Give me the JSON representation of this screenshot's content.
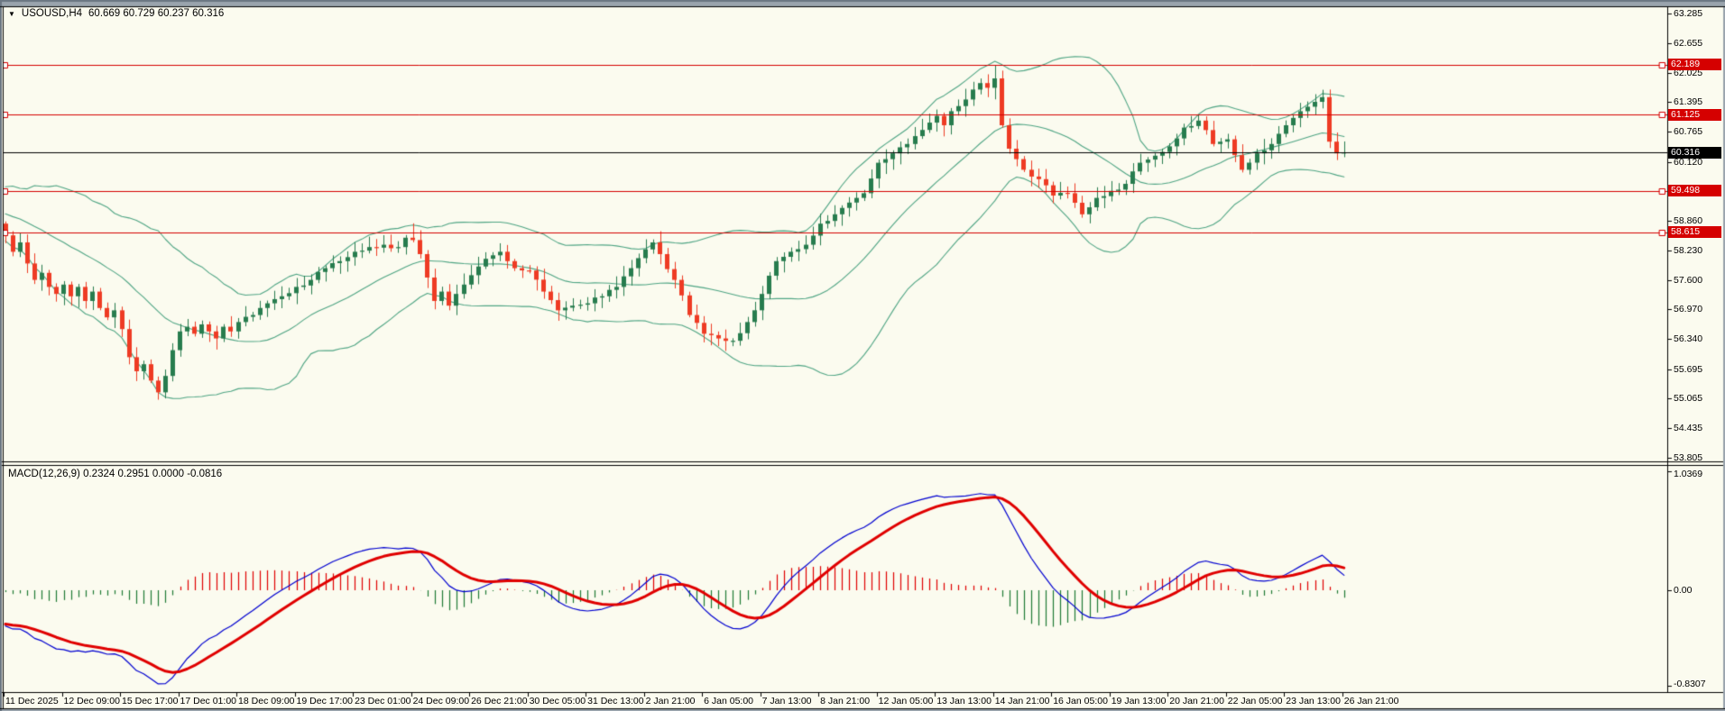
{
  "header": {
    "dropdown_icon": "▼",
    "title": "USOUSD,H4",
    "ohlc_text": "60.669 60.729 60.237 60.316"
  },
  "colors": {
    "background": "#FBFBEF",
    "chrome_gray": "#9AA4AD",
    "chrome_dark": "#6A7682",
    "frame_black": "#000000",
    "bull_candle": "#277C4E",
    "bear_candle": "#EE3B24",
    "bollinger": "#4FA584",
    "level_line": "#D50000",
    "current_price_line": "#000000",
    "macd_line": "#0000D0",
    "macd_signal": "#E00000",
    "hist_positive": "#E00000",
    "hist_negative": "#1F7A34",
    "badge_level_bg": "#D50000",
    "badge_current_bg": "#000000",
    "text": "#000000"
  },
  "chart_data": {
    "type": "candlestick",
    "symbol": "USOUSD",
    "timeframe": "H4",
    "quote_open": "60.669",
    "quote_high": "60.729",
    "quote_low": "60.237",
    "quote_close": "60.316",
    "price_axis_min": 53.805,
    "price_axis_max": 63.285,
    "price_axis_ticks": [
      {
        "label": "63.285",
        "price": 63.285
      },
      {
        "label": "62.655",
        "price": 62.655
      },
      {
        "label": "62.025",
        "price": 62.025
      },
      {
        "label": "61.395",
        "price": 61.395
      },
      {
        "label": "60.765",
        "price": 60.765
      },
      {
        "label": "60.120",
        "price": 60.12
      },
      {
        "label": "58.860",
        "price": 58.86
      },
      {
        "label": "58.230",
        "price": 58.23
      },
      {
        "label": "57.600",
        "price": 57.6
      },
      {
        "label": "56.970",
        "price": 56.97
      },
      {
        "label": "56.340",
        "price": 56.34
      },
      {
        "label": "55.695",
        "price": 55.695
      },
      {
        "label": "55.065",
        "price": 55.065
      },
      {
        "label": "54.435",
        "price": 54.435
      },
      {
        "label": "53.805",
        "price": 53.805
      }
    ],
    "time_labels": [
      "11 Dec 2025",
      "12 Dec 09:00",
      "15 Dec 17:00",
      "17 Dec 01:00",
      "18 Dec 09:00",
      "19 Dec 17:00",
      "23 Dec 01:00",
      "24 Dec 09:00",
      "26 Dec 21:00",
      "30 Dec 05:00",
      "31 Dec 13:00",
      "2 Jan 21:00",
      "6 Jan 05:00",
      "7 Jan 13:00",
      "8 Jan 21:00",
      "12 Jan 05:00",
      "13 Jan 13:00",
      "14 Jan 21:00",
      "16 Jan 05:00",
      "19 Jan 13:00",
      "20 Jan 21:00",
      "22 Jan 05:00",
      "23 Jan 13:00",
      "26 Jan 21:00"
    ],
    "bars_per_label": 8,
    "bar_count": 185,
    "close_path_anchors": [
      [
        0,
        58.55
      ],
      [
        1,
        58.2
      ],
      [
        2,
        58.4
      ],
      [
        3,
        57.95
      ],
      [
        4,
        57.6
      ],
      [
        5,
        57.75
      ],
      [
        6,
        57.45
      ],
      [
        7,
        57.3
      ],
      [
        8,
        57.5
      ],
      [
        9,
        57.25
      ],
      [
        10,
        57.45
      ],
      [
        11,
        57.15
      ],
      [
        12,
        57.35
      ],
      [
        13,
        57.0
      ],
      [
        14,
        56.8
      ],
      [
        15,
        56.95
      ],
      [
        16,
        56.55
      ],
      [
        17,
        55.95
      ],
      [
        18,
        55.65
      ],
      [
        19,
        55.8
      ],
      [
        20,
        55.45
      ],
      [
        21,
        55.2
      ],
      [
        22,
        55.55
      ],
      [
        23,
        56.1
      ],
      [
        24,
        56.5
      ],
      [
        25,
        56.6
      ],
      [
        26,
        56.45
      ],
      [
        27,
        56.65
      ],
      [
        28,
        56.5
      ],
      [
        29,
        56.35
      ],
      [
        30,
        56.6
      ],
      [
        31,
        56.5
      ],
      [
        32,
        56.7
      ],
      [
        34,
        56.85
      ],
      [
        36,
        57.1
      ],
      [
        38,
        57.25
      ],
      [
        40,
        57.45
      ],
      [
        42,
        57.6
      ],
      [
        44,
        57.85
      ],
      [
        46,
        58.0
      ],
      [
        48,
        58.2
      ],
      [
        50,
        58.3
      ],
      [
        52,
        58.35
      ],
      [
        54,
        58.3
      ],
      [
        55,
        58.5
      ],
      [
        56,
        58.45
      ],
      [
        57,
        58.15
      ],
      [
        58,
        57.65
      ],
      [
        59,
        57.15
      ],
      [
        60,
        57.35
      ],
      [
        61,
        57.05
      ],
      [
        62,
        57.3
      ],
      [
        63,
        57.5
      ],
      [
        64,
        57.7
      ],
      [
        66,
        58.05
      ],
      [
        68,
        58.2
      ],
      [
        69,
        58.0
      ],
      [
        70,
        57.85
      ],
      [
        72,
        57.8
      ],
      [
        74,
        57.35
      ],
      [
        76,
        56.95
      ],
      [
        78,
        57.05
      ],
      [
        80,
        57.1
      ],
      [
        82,
        57.25
      ],
      [
        84,
        57.45
      ],
      [
        86,
        57.85
      ],
      [
        88,
        58.25
      ],
      [
        89,
        58.4
      ],
      [
        90,
        58.15
      ],
      [
        92,
        57.6
      ],
      [
        94,
        56.85
      ],
      [
        96,
        56.45
      ],
      [
        98,
        56.35
      ],
      [
        100,
        56.3
      ],
      [
        102,
        56.7
      ],
      [
        104,
        57.3
      ],
      [
        106,
        58.0
      ],
      [
        108,
        58.2
      ],
      [
        110,
        58.35
      ],
      [
        112,
        58.8
      ],
      [
        114,
        59.0
      ],
      [
        116,
        59.25
      ],
      [
        118,
        59.45
      ],
      [
        120,
        60.1
      ],
      [
        122,
        60.3
      ],
      [
        124,
        60.5
      ],
      [
        126,
        60.8
      ],
      [
        128,
        61.1
      ],
      [
        129,
        60.9
      ],
      [
        130,
        61.2
      ],
      [
        132,
        61.45
      ],
      [
        134,
        61.8
      ],
      [
        135,
        61.7
      ],
      [
        136,
        61.9
      ],
      [
        137,
        60.9
      ],
      [
        138,
        60.4
      ],
      [
        140,
        59.95
      ],
      [
        142,
        59.75
      ],
      [
        144,
        59.4
      ],
      [
        146,
        59.45
      ],
      [
        148,
        59.0
      ],
      [
        150,
        59.35
      ],
      [
        152,
        59.5
      ],
      [
        154,
        59.65
      ],
      [
        156,
        60.1
      ],
      [
        158,
        60.25
      ],
      [
        160,
        60.45
      ],
      [
        162,
        60.85
      ],
      [
        164,
        61.0
      ],
      [
        166,
        60.5
      ],
      [
        168,
        60.6
      ],
      [
        170,
        59.95
      ],
      [
        172,
        60.3
      ],
      [
        174,
        60.5
      ],
      [
        176,
        60.9
      ],
      [
        178,
        61.2
      ],
      [
        180,
        61.4
      ],
      [
        181,
        61.5
      ],
      [
        182,
        60.55
      ],
      [
        183,
        60.3
      ],
      [
        184,
        60.32
      ]
    ],
    "wick_overrides": [
      [
        21,
        "low",
        55.05
      ],
      [
        56,
        "high",
        58.8
      ],
      [
        136,
        "high",
        62.17
      ],
      [
        181,
        "high",
        61.65
      ]
    ],
    "horizontal_lines": [
      {
        "label": "62.189",
        "price": 62.189,
        "kind": "level"
      },
      {
        "label": "61.125",
        "price": 61.125,
        "kind": "level"
      },
      {
        "label": "59.498",
        "price": 59.498,
        "kind": "level"
      },
      {
        "label": "58.615",
        "price": 58.615,
        "kind": "level"
      },
      {
        "label": "60.316",
        "price": 60.316,
        "kind": "current-price"
      }
    ],
    "overlay": {
      "name": "Bollinger Bands",
      "period": 20,
      "deviations": 2
    },
    "indicator": {
      "name": "MACD",
      "label": "MACD(12,26,9) 0.2324 0.2951 0.0000 -0.0816",
      "fast": 12,
      "slow": 26,
      "signal": 9,
      "values": [
        "0.2324",
        "0.2951",
        "0.0000",
        "-0.0816"
      ],
      "axis_max_label": "1.0369",
      "axis_zero_label": "0.00",
      "axis_min_label": "-0.8307",
      "axis_max": 1.0369,
      "axis_min": -0.8307
    }
  }
}
